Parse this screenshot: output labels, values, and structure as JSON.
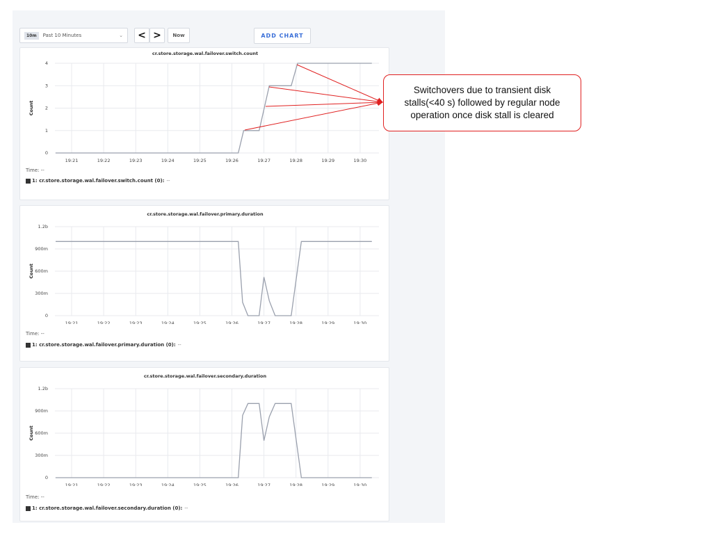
{
  "toolbar": {
    "range_badge": "10m",
    "range_label": "Past 10 Minutes",
    "range_chevron": "⌄",
    "prev_label": "<",
    "next_label": ">",
    "now_label": "Now",
    "add_chart_label": "ADD CHART"
  },
  "annotation": {
    "text": "Switchovers due to transient disk stalls(<40 s) followed by regular node operation once disk stall is cleared",
    "color": "#e02020"
  },
  "chart_data": [
    {
      "type": "line",
      "title": "cr.store.storage.wal.failover.switch.count",
      "ylabel": "Count",
      "xlabel": "",
      "x_ticks": [
        "19:21",
        "19:22",
        "19:23",
        "19:24",
        "19:25",
        "19:26",
        "19:27",
        "19:28",
        "19:29",
        "19:30"
      ],
      "y_ticks": [
        "0",
        "1",
        "2",
        "3",
        "4"
      ],
      "y_tick_values": [
        0,
        1,
        2,
        3,
        4
      ],
      "ylim": [
        0,
        4
      ],
      "grid": true,
      "line_color": "#9aa0ad",
      "points": [
        [
          "19:20:30",
          0
        ],
        [
          "19:26:12",
          0
        ],
        [
          "19:26:22",
          1
        ],
        [
          "19:26:51",
          1
        ],
        [
          "19:27:10",
          3
        ],
        [
          "19:27:51",
          3
        ],
        [
          "19:28:03",
          4
        ],
        [
          "19:30:22",
          4
        ]
      ],
      "time_label": "Time:",
      "time_value": "--",
      "legend": "1: cr.store.storage.wal.failover.switch.count (0):",
      "legend_value": "--"
    },
    {
      "type": "line",
      "title": "cr.store.storage.wal.failover.primary.duration",
      "ylabel": "Count",
      "xlabel": "",
      "x_ticks": [
        "19:21",
        "19:22",
        "19:23",
        "19:24",
        "19:25",
        "19:26",
        "19:27",
        "19:28",
        "19:29",
        "19:30"
      ],
      "y_ticks": [
        "0",
        "300m",
        "600m",
        "900m",
        "1.2b"
      ],
      "y_tick_values": [
        0,
        0.3,
        0.6,
        0.9,
        1.2
      ],
      "ylim": [
        0,
        1.2
      ],
      "grid": true,
      "line_color": "#9aa0ad",
      "points": [
        [
          "19:20:30",
          1.0
        ],
        [
          "19:26:12",
          1.0
        ],
        [
          "19:26:20",
          0.18
        ],
        [
          "19:26:30",
          0
        ],
        [
          "19:26:51",
          0
        ],
        [
          "19:27:00",
          0.52
        ],
        [
          "19:27:10",
          0.2
        ],
        [
          "19:27:21",
          0
        ],
        [
          "19:27:51",
          0
        ],
        [
          "19:28:10",
          1.0
        ],
        [
          "19:30:22",
          1.0
        ]
      ],
      "time_label": "Time:",
      "time_value": "--",
      "legend": "1: cr.store.storage.wal.failover.primary.duration (0):",
      "legend_value": "--"
    },
    {
      "type": "line",
      "title": "cr.store.storage.wal.failover.secondary.duration",
      "ylabel": "Count",
      "xlabel": "",
      "x_ticks": [
        "19:21",
        "19:22",
        "19:23",
        "19:24",
        "19:25",
        "19:26",
        "19:27",
        "19:28",
        "19:29",
        "19:30"
      ],
      "y_ticks": [
        "0",
        "300m",
        "600m",
        "900m",
        "1.2b"
      ],
      "y_tick_values": [
        0,
        0.3,
        0.6,
        0.9,
        1.2
      ],
      "ylim": [
        0,
        1.2
      ],
      "grid": true,
      "line_color": "#9aa0ad",
      "points": [
        [
          "19:20:30",
          0
        ],
        [
          "19:26:12",
          0
        ],
        [
          "19:26:20",
          0.84
        ],
        [
          "19:26:30",
          1.0
        ],
        [
          "19:26:51",
          1.0
        ],
        [
          "19:27:00",
          0.5
        ],
        [
          "19:27:10",
          0.82
        ],
        [
          "19:27:21",
          1.0
        ],
        [
          "19:27:51",
          1.0
        ],
        [
          "19:28:10",
          0
        ],
        [
          "19:30:22",
          0
        ]
      ],
      "time_label": "Time:",
      "time_value": "--",
      "legend": "1: cr.store.storage.wal.failover.secondary.duration (0):",
      "legend_value": "--"
    }
  ]
}
